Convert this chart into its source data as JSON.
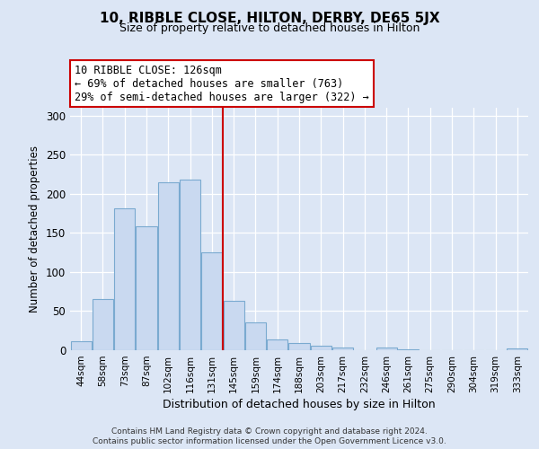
{
  "title": "10, RIBBLE CLOSE, HILTON, DERBY, DE65 5JX",
  "subtitle": "Size of property relative to detached houses in Hilton",
  "xlabel": "Distribution of detached houses by size in Hilton",
  "ylabel": "Number of detached properties",
  "bar_labels": [
    "44sqm",
    "58sqm",
    "73sqm",
    "87sqm",
    "102sqm",
    "116sqm",
    "131sqm",
    "145sqm",
    "159sqm",
    "174sqm",
    "188sqm",
    "203sqm",
    "217sqm",
    "232sqm",
    "246sqm",
    "261sqm",
    "275sqm",
    "290sqm",
    "304sqm",
    "319sqm",
    "333sqm"
  ],
  "bar_values": [
    12,
    65,
    181,
    158,
    215,
    218,
    125,
    63,
    36,
    14,
    9,
    6,
    3,
    0,
    3,
    1,
    0,
    0,
    0,
    0,
    2
  ],
  "bar_color": "#c9d9f0",
  "bar_edge_color": "#7aaad0",
  "vline_color": "#cc0000",
  "vline_pos": 6.5,
  "annotation_text": "10 RIBBLE CLOSE: 126sqm\n← 69% of detached houses are smaller (763)\n29% of semi-detached houses are larger (322) →",
  "annotation_box_color": "#ffffff",
  "annotation_box_edge": "#cc0000",
  "ylim": [
    0,
    310
  ],
  "yticks": [
    0,
    50,
    100,
    150,
    200,
    250,
    300
  ],
  "footer_line1": "Contains HM Land Registry data © Crown copyright and database right 2024.",
  "footer_line2": "Contains public sector information licensed under the Open Government Licence v3.0.",
  "background_color": "#dce6f5",
  "plot_bg_color": "#dce6f5"
}
